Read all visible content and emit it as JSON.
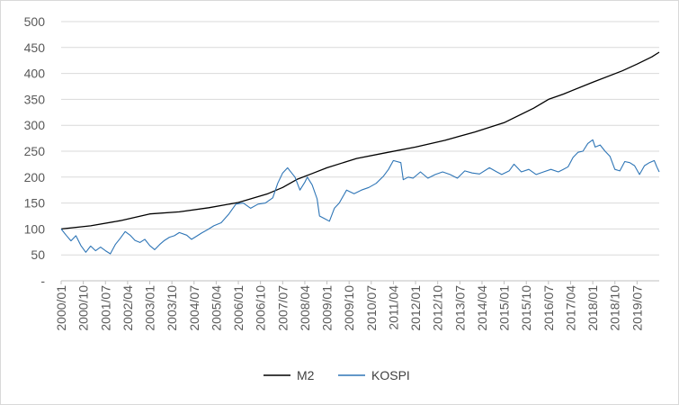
{
  "chart_data": {
    "type": "line",
    "title": "",
    "xlabel": "",
    "ylabel": "",
    "ylim": [
      0,
      500
    ],
    "y_ticks": [
      0,
      50,
      100,
      150,
      200,
      250,
      300,
      350,
      400,
      450,
      500
    ],
    "y_tick_labels": [
      "-",
      "50",
      "100",
      "150",
      "200",
      "250",
      "300",
      "350",
      "400",
      "450",
      "500"
    ],
    "x_tick_labels": [
      "2000/01",
      "2000/10",
      "2001/07",
      "2002/04",
      "2003/01",
      "2003/10",
      "2004/07",
      "2005/04",
      "2006/01",
      "2006/10",
      "2007/07",
      "2008/04",
      "2009/01",
      "2009/10",
      "2010/07",
      "2011/04",
      "2012/01",
      "2012/10",
      "2013/07",
      "2014/04",
      "2015/01",
      "2015/10",
      "2016/07",
      "2017/04",
      "2018/01",
      "2018/10",
      "2019/07"
    ],
    "x_start": "2000/01",
    "x_end": "2020/04",
    "grid": "horizontal",
    "legend_position": "bottom",
    "colors": {
      "M2": "#000000",
      "KOSPI": "#2e75b6",
      "grid": "#d9d9d9",
      "axis": "#bfbfbf"
    },
    "series": [
      {
        "name": "M2",
        "points": [
          [
            "2000/01",
            100
          ],
          [
            "2001/01",
            106
          ],
          [
            "2002/01",
            116
          ],
          [
            "2003/01",
            129
          ],
          [
            "2004/01",
            133
          ],
          [
            "2005/01",
            141
          ],
          [
            "2006/01",
            151
          ],
          [
            "2007/01",
            168
          ],
          [
            "2007/07",
            180
          ],
          [
            "2008/01",
            196
          ],
          [
            "2008/07",
            207
          ],
          [
            "2009/01",
            218
          ],
          [
            "2010/01",
            236
          ],
          [
            "2011/01",
            247
          ],
          [
            "2012/01",
            258
          ],
          [
            "2013/01",
            271
          ],
          [
            "2014/01",
            287
          ],
          [
            "2015/01",
            305
          ],
          [
            "2016/01",
            333
          ],
          [
            "2016/07",
            350
          ],
          [
            "2017/01",
            360
          ],
          [
            "2018/01",
            383
          ],
          [
            "2019/01",
            405
          ],
          [
            "2019/07",
            418
          ],
          [
            "2020/01",
            432
          ],
          [
            "2020/04",
            441
          ]
        ]
      },
      {
        "name": "KOSPI",
        "points": [
          [
            "2000/01",
            100
          ],
          [
            "2000/03",
            88
          ],
          [
            "2000/05",
            77
          ],
          [
            "2000/07",
            87
          ],
          [
            "2000/09",
            68
          ],
          [
            "2000/11",
            55
          ],
          [
            "2001/01",
            67
          ],
          [
            "2001/03",
            58
          ],
          [
            "2001/05",
            65
          ],
          [
            "2001/07",
            58
          ],
          [
            "2001/09",
            52
          ],
          [
            "2001/11",
            70
          ],
          [
            "2002/01",
            82
          ],
          [
            "2002/03",
            95
          ],
          [
            "2002/05",
            88
          ],
          [
            "2002/07",
            78
          ],
          [
            "2002/09",
            74
          ],
          [
            "2002/11",
            80
          ],
          [
            "2003/01",
            68
          ],
          [
            "2003/03",
            60
          ],
          [
            "2003/05",
            70
          ],
          [
            "2003/07",
            78
          ],
          [
            "2003/09",
            84
          ],
          [
            "2003/11",
            87
          ],
          [
            "2004/01",
            93
          ],
          [
            "2004/04",
            88
          ],
          [
            "2004/06",
            80
          ],
          [
            "2004/08",
            86
          ],
          [
            "2004/10",
            92
          ],
          [
            "2005/01",
            100
          ],
          [
            "2005/03",
            106
          ],
          [
            "2005/06",
            112
          ],
          [
            "2005/09",
            128
          ],
          [
            "2005/12",
            148
          ],
          [
            "2006/03",
            150
          ],
          [
            "2006/06",
            140
          ],
          [
            "2006/09",
            148
          ],
          [
            "2006/12",
            150
          ],
          [
            "2007/03",
            160
          ],
          [
            "2007/05",
            188
          ],
          [
            "2007/07",
            208
          ],
          [
            "2007/09",
            218
          ],
          [
            "2007/10",
            212
          ],
          [
            "2007/12",
            200
          ],
          [
            "2008/02",
            175
          ],
          [
            "2008/04",
            190
          ],
          [
            "2008/05",
            200
          ],
          [
            "2008/07",
            185
          ],
          [
            "2008/09",
            158
          ],
          [
            "2008/10",
            125
          ],
          [
            "2008/12",
            120
          ],
          [
            "2009/02",
            115
          ],
          [
            "2009/04",
            140
          ],
          [
            "2009/06",
            150
          ],
          [
            "2009/09",
            175
          ],
          [
            "2009/12",
            168
          ],
          [
            "2010/03",
            175
          ],
          [
            "2010/06",
            180
          ],
          [
            "2010/09",
            188
          ],
          [
            "2010/12",
            202
          ],
          [
            "2011/02",
            215
          ],
          [
            "2011/04",
            232
          ],
          [
            "2011/07",
            228
          ],
          [
            "2011/08",
            195
          ],
          [
            "2011/10",
            200
          ],
          [
            "2011/12",
            198
          ],
          [
            "2012/03",
            210
          ],
          [
            "2012/06",
            198
          ],
          [
            "2012/09",
            205
          ],
          [
            "2012/12",
            210
          ],
          [
            "2013/03",
            205
          ],
          [
            "2013/06",
            198
          ],
          [
            "2013/09",
            212
          ],
          [
            "2013/12",
            208
          ],
          [
            "2014/03",
            206
          ],
          [
            "2014/07",
            218
          ],
          [
            "2014/10",
            210
          ],
          [
            "2014/12",
            205
          ],
          [
            "2015/03",
            212
          ],
          [
            "2015/05",
            225
          ],
          [
            "2015/08",
            210
          ],
          [
            "2015/11",
            215
          ],
          [
            "2016/02",
            205
          ],
          [
            "2016/05",
            210
          ],
          [
            "2016/08",
            215
          ],
          [
            "2016/11",
            210
          ],
          [
            "2017/01",
            215
          ],
          [
            "2017/03",
            220
          ],
          [
            "2017/05",
            238
          ],
          [
            "2017/07",
            248
          ],
          [
            "2017/09",
            250
          ],
          [
            "2017/11",
            265
          ],
          [
            "2018/01",
            272
          ],
          [
            "2018/02",
            258
          ],
          [
            "2018/04",
            262
          ],
          [
            "2018/06",
            250
          ],
          [
            "2018/08",
            240
          ],
          [
            "2018/10",
            215
          ],
          [
            "2018/12",
            212
          ],
          [
            "2019/02",
            230
          ],
          [
            "2019/04",
            228
          ],
          [
            "2019/06",
            222
          ],
          [
            "2019/08",
            205
          ],
          [
            "2019/10",
            222
          ],
          [
            "2019/12",
            228
          ],
          [
            "2020/02",
            232
          ],
          [
            "2020/03",
            220
          ],
          [
            "2020/04",
            210
          ]
        ]
      }
    ]
  }
}
